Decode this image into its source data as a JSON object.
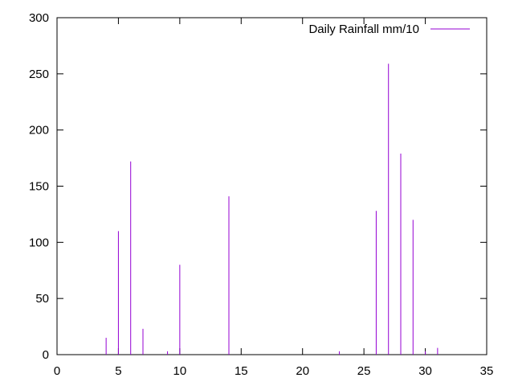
{
  "chart_data": {
    "type": "impulse",
    "series": [
      {
        "name": "Daily Rainfall mm/10",
        "color": "#9400d3",
        "x": [
          4,
          5,
          6,
          7,
          9,
          10,
          14,
          23,
          26,
          27,
          28,
          29,
          30,
          31
        ],
        "values": [
          15,
          110,
          172,
          23,
          3,
          80,
          141,
          3,
          128,
          259,
          179,
          120,
          3,
          6
        ]
      }
    ],
    "xlim": [
      0,
      35
    ],
    "ylim": [
      0,
      300
    ],
    "xticks": [
      0,
      5,
      10,
      15,
      20,
      25,
      30,
      35
    ],
    "yticks": [
      0,
      50,
      100,
      150,
      200,
      250,
      300
    ],
    "legend_position": "top-right",
    "grid": false
  }
}
